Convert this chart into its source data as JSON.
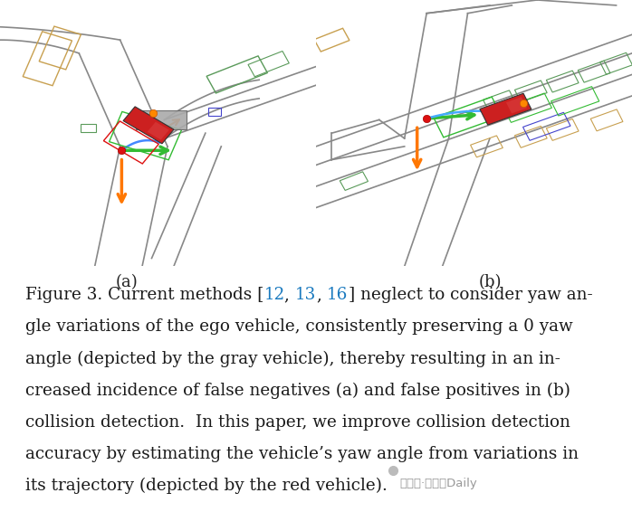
{
  "fig_width": 6.98,
  "fig_height": 5.66,
  "dpi": 100,
  "background_color": "#ffffff",
  "watermark_text": "公众号·自动驾Daily",
  "label_a": "(a)",
  "label_b": "(b)",
  "caption_fontsize": 13.2,
  "caption_color": "#1a1a1a",
  "link_color": "#1a7abf",
  "font_family": "serif",
  "label_fontsize": 13
}
